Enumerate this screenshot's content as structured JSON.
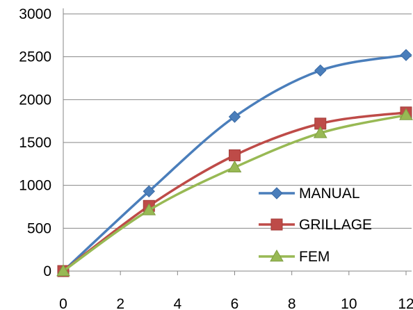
{
  "chart_data": {
    "type": "line",
    "title": "",
    "xlabel": "",
    "ylabel": "",
    "x": [
      0,
      3,
      6,
      9,
      12
    ],
    "xlim": [
      0,
      12
    ],
    "ylim": [
      0,
      3000
    ],
    "x_ticks": [
      "0",
      "2",
      "4",
      "6",
      "8",
      "10",
      "12"
    ],
    "y_ticks": [
      "0",
      "500",
      "1000",
      "1500",
      "2000",
      "2500",
      "3000"
    ],
    "grid": "horizontal",
    "smooth": true,
    "legend_position": "bottom-right (inside plot)",
    "series": [
      {
        "name": "MANUAL",
        "marker": "diamond",
        "color": "#4a7ebb",
        "values": [
          0,
          930,
          1800,
          2340,
          2520
        ]
      },
      {
        "name": "GRILLAGE",
        "marker": "square",
        "color": "#be4b48",
        "values": [
          0,
          760,
          1350,
          1720,
          1850
        ]
      },
      {
        "name": "FEM",
        "marker": "triangle",
        "color": "#98b954",
        "values": [
          0,
          710,
          1210,
          1610,
          1820
        ]
      }
    ]
  }
}
